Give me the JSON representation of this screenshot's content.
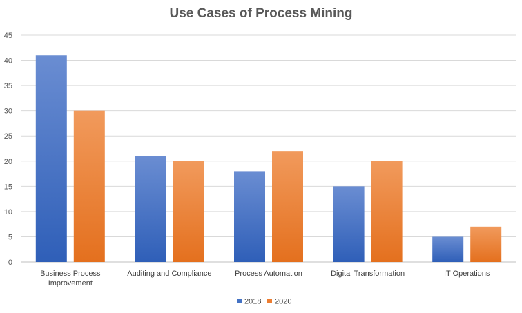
{
  "chart_data": {
    "type": "bar",
    "title": "Use Cases of Process Mining",
    "categories": [
      [
        "Business Process",
        "Improvement"
      ],
      [
        "Auditing and Compliance"
      ],
      [
        "Process Automation"
      ],
      [
        "Digital Transformation"
      ],
      [
        "IT Operations"
      ]
    ],
    "series": [
      {
        "name": "2018",
        "values": [
          41,
          21,
          18,
          15,
          5
        ],
        "color": "#4472C4",
        "color_light": "#6A8DD2",
        "color_dark": "#2F5FB8"
      },
      {
        "name": "2020",
        "values": [
          30,
          20,
          22,
          20,
          7
        ],
        "color": "#ED7D31",
        "color_light": "#F19A5C",
        "color_dark": "#E4701E"
      }
    ],
    "ylim": [
      0,
      45
    ],
    "yticks": [
      0,
      5,
      10,
      15,
      20,
      25,
      30,
      35,
      40,
      45
    ],
    "grid": true,
    "legend": "bottom"
  }
}
